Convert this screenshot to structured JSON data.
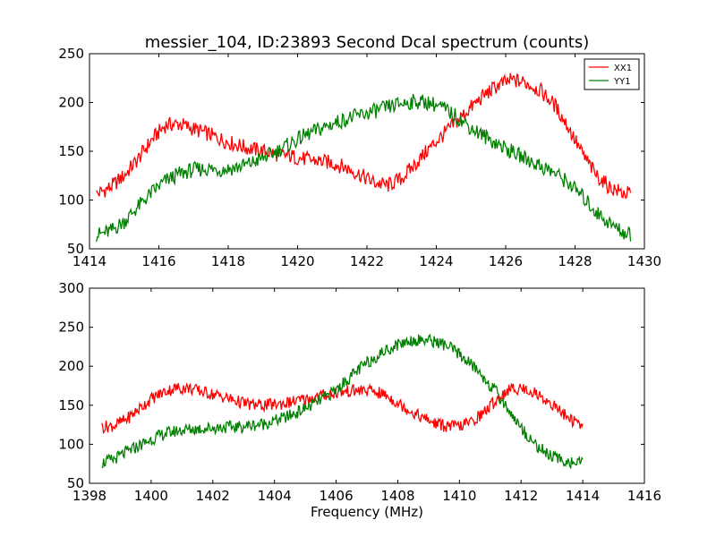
{
  "chart_data": [
    {
      "type": "line",
      "title": "messier_104, ID:23893 Second Dcal spectrum (counts)",
      "xlabel": "",
      "ylabel": "",
      "xlim": [
        1414,
        1430
      ],
      "ylim": [
        50,
        250
      ],
      "xticks": [
        1414,
        1416,
        1418,
        1420,
        1422,
        1424,
        1426,
        1428,
        1430
      ],
      "yticks": [
        50,
        100,
        150,
        200,
        250
      ],
      "legend": "top-right",
      "series": [
        {
          "name": "XX1",
          "color": "#ff0000",
          "x": [
            1414.2,
            1414.6,
            1415.0,
            1415.4,
            1415.8,
            1416.2,
            1416.6,
            1417.0,
            1417.4,
            1417.8,
            1418.2,
            1418.6,
            1419.0,
            1419.4,
            1419.8,
            1420.2,
            1420.6,
            1421.0,
            1421.4,
            1421.8,
            1422.2,
            1422.6,
            1423.0,
            1423.4,
            1423.8,
            1424.2,
            1424.6,
            1425.0,
            1425.4,
            1425.8,
            1426.2,
            1426.6,
            1427.0,
            1427.4,
            1427.8,
            1428.2,
            1428.6,
            1429.0,
            1429.4,
            1429.6
          ],
          "values": [
            106,
            113,
            125,
            142,
            162,
            177,
            178,
            173,
            168,
            162,
            157,
            153,
            150,
            147,
            145,
            142,
            140,
            138,
            133,
            126,
            118,
            115,
            122,
            137,
            153,
            167,
            181,
            195,
            208,
            218,
            223,
            220,
            212,
            198,
            175,
            148,
            126,
            113,
            107,
            106
          ]
        },
        {
          "name": "YY1",
          "color": "#008000",
          "x": [
            1414.2,
            1414.6,
            1415.0,
            1415.4,
            1415.8,
            1416.2,
            1416.6,
            1417.0,
            1417.4,
            1417.8,
            1418.2,
            1418.6,
            1419.0,
            1419.4,
            1419.8,
            1420.2,
            1420.6,
            1421.0,
            1421.4,
            1421.8,
            1422.2,
            1422.6,
            1423.0,
            1423.4,
            1423.8,
            1424.2,
            1424.6,
            1425.0,
            1425.4,
            1425.8,
            1426.2,
            1426.6,
            1427.0,
            1427.4,
            1427.8,
            1428.2,
            1428.6,
            1429.0,
            1429.4,
            1429.6
          ],
          "values": [
            64,
            68,
            78,
            93,
            108,
            120,
            127,
            131,
            132,
            131,
            133,
            137,
            143,
            150,
            158,
            166,
            172,
            178,
            183,
            187,
            191,
            195,
            199,
            201,
            200,
            194,
            185,
            174,
            165,
            157,
            149,
            142,
            135,
            128,
            118,
            104,
            88,
            76,
            67,
            64
          ]
        }
      ]
    },
    {
      "type": "line",
      "title": "",
      "xlabel": "Frequency (MHz)",
      "ylabel": "",
      "xlim": [
        1398,
        1416
      ],
      "ylim": [
        50,
        300
      ],
      "xticks": [
        1398,
        1400,
        1402,
        1404,
        1406,
        1408,
        1410,
        1412,
        1414,
        1416
      ],
      "yticks": [
        50,
        100,
        150,
        200,
        250,
        300
      ],
      "series": [
        {
          "name": "XX1",
          "color": "#ff0000",
          "x": [
            1398.4,
            1398.8,
            1399.2,
            1399.6,
            1400.0,
            1400.4,
            1400.8,
            1401.2,
            1401.6,
            1402.0,
            1402.4,
            1402.8,
            1403.2,
            1403.6,
            1404.0,
            1404.4,
            1404.8,
            1405.2,
            1405.6,
            1406.0,
            1406.4,
            1406.8,
            1407.2,
            1407.6,
            1408.0,
            1408.4,
            1408.8,
            1409.2,
            1409.6,
            1410.0,
            1410.4,
            1410.8,
            1411.2,
            1411.6,
            1412.0,
            1412.4,
            1412.8,
            1413.2,
            1413.6,
            1414.0
          ],
          "values": [
            122,
            124,
            132,
            145,
            158,
            167,
            172,
            172,
            168,
            164,
            160,
            155,
            151,
            150,
            151,
            153,
            156,
            159,
            163,
            166,
            168,
            169,
            168,
            163,
            153,
            143,
            134,
            127,
            123,
            123,
            129,
            141,
            157,
            170,
            172,
            167,
            157,
            145,
            132,
            122
          ]
        },
        {
          "name": "YY1",
          "color": "#008000",
          "x": [
            1398.4,
            1398.8,
            1399.2,
            1399.6,
            1400.0,
            1400.4,
            1400.8,
            1401.2,
            1401.6,
            1402.0,
            1402.4,
            1402.8,
            1403.2,
            1403.6,
            1404.0,
            1404.4,
            1404.8,
            1405.2,
            1405.6,
            1406.0,
            1406.4,
            1406.8,
            1407.2,
            1407.6,
            1408.0,
            1408.4,
            1408.8,
            1409.2,
            1409.6,
            1410.0,
            1410.4,
            1410.8,
            1411.2,
            1411.6,
            1412.0,
            1412.4,
            1412.8,
            1413.2,
            1413.6,
            1414.0
          ],
          "values": [
            76,
            81,
            90,
            98,
            106,
            113,
            117,
            119,
            120,
            121,
            122,
            122,
            124,
            126,
            130,
            135,
            142,
            150,
            159,
            170,
            184,
            198,
            210,
            220,
            228,
            233,
            234,
            232,
            226,
            215,
            202,
            185,
            166,
            144,
            121,
            102,
            89,
            81,
            77,
            75
          ]
        }
      ]
    }
  ]
}
